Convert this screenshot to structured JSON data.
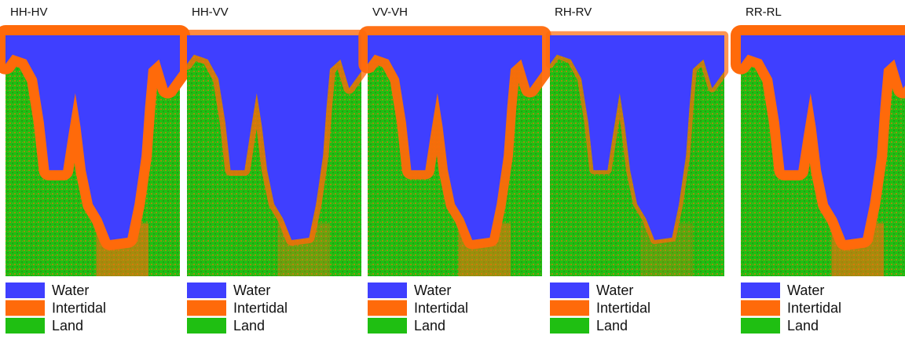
{
  "panels": [
    {
      "title": "HH-HV",
      "legend": [
        {
          "label": "Water",
          "color": "#3f3fff"
        },
        {
          "label": "Intertidal",
          "color": "#ff6a0a"
        },
        {
          "label": "Land",
          "color": "#1fbf12"
        }
      ]
    },
    {
      "title": "HH-VV",
      "legend": [
        {
          "label": "Water",
          "color": "#3f3fff"
        },
        {
          "label": "Intertidal",
          "color": "#ff6a0a"
        },
        {
          "label": "Land",
          "color": "#1fbf12"
        }
      ]
    },
    {
      "title": "VV-VH",
      "legend": [
        {
          "label": "Water",
          "color": "#3f3fff"
        },
        {
          "label": "Intertidal",
          "color": "#ff6a0a"
        },
        {
          "label": "Land",
          "color": "#1fbf12"
        }
      ]
    },
    {
      "title": "RH-RV",
      "legend": [
        {
          "label": "Water",
          "color": "#3f3fff"
        },
        {
          "label": "Intertidal",
          "color": "#ff6a0a"
        },
        {
          "label": "Land",
          "color": "#1fbf12"
        }
      ]
    },
    {
      "title": "RR-RL",
      "legend": [
        {
          "label": "Water",
          "color": "#3f3fff"
        },
        {
          "label": "Intertidal",
          "color": "#ff6a0a"
        },
        {
          "label": "Land",
          "color": "#1fbf12"
        }
      ]
    }
  ]
}
